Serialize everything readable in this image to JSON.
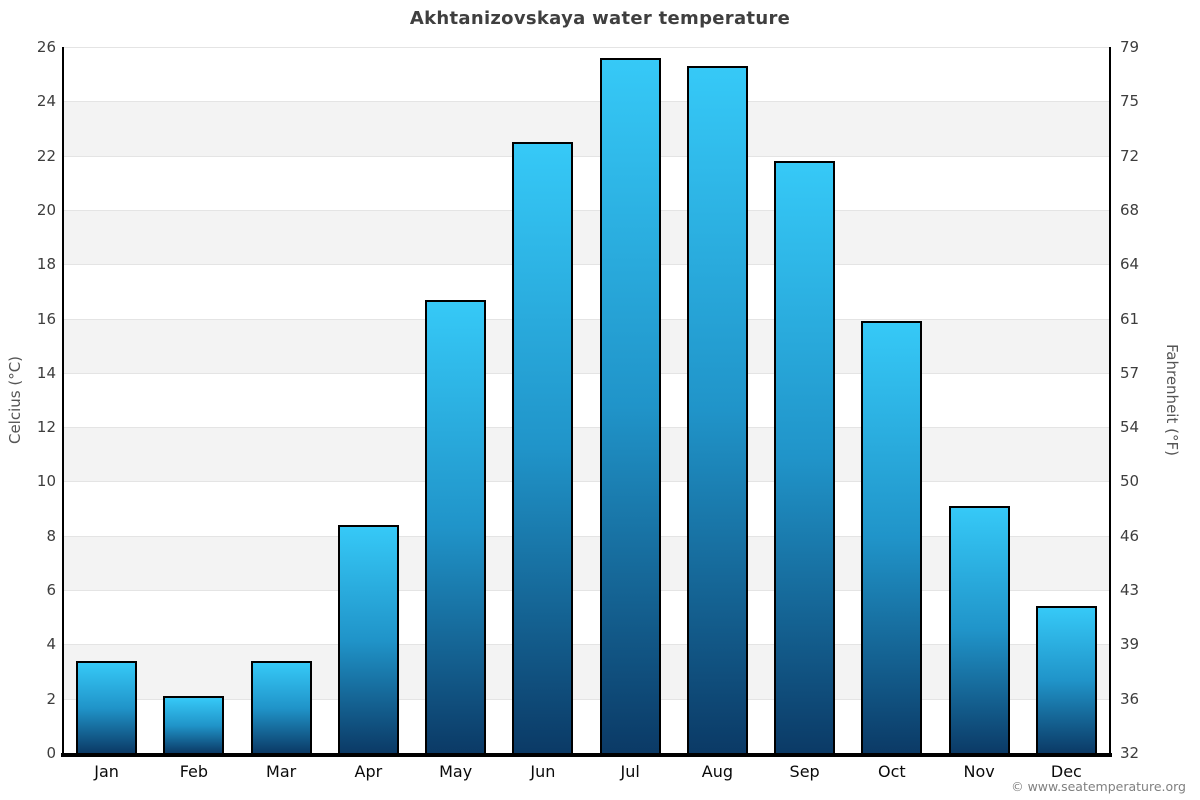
{
  "chart_data": {
    "type": "bar",
    "title": "Akhtanizovskaya water temperature",
    "categories": [
      "Jan",
      "Feb",
      "Mar",
      "Apr",
      "May",
      "Jun",
      "Jul",
      "Aug",
      "Sep",
      "Oct",
      "Nov",
      "Dec"
    ],
    "values": [
      3.4,
      2.1,
      3.4,
      8.4,
      16.7,
      22.5,
      25.6,
      25.3,
      21.8,
      15.9,
      9.1,
      5.4
    ],
    "ylabel_left": "Celcius (°C)",
    "ylabel_right": "Fahrenheit (°F)",
    "ylim": [
      0,
      26
    ],
    "ytick_step": 2,
    "yticks_celsius": [
      "0",
      "2",
      "4",
      "6",
      "8",
      "10",
      "12",
      "14",
      "16",
      "18",
      "20",
      "22",
      "24",
      "26"
    ],
    "yticks_fahrenheit": [
      "32",
      "36",
      "39",
      "43",
      "46",
      "50",
      "54",
      "57",
      "61",
      "64",
      "68",
      "72",
      "75",
      "79"
    ],
    "legend": "none",
    "grid": "alternating horizontal bands every 2°C",
    "colors": {
      "bar_gradient_top": "#36c9f7",
      "bar_gradient_mid": "#2094c9",
      "bar_gradient_bottom": "#0b3a66",
      "bar_border": "#000000",
      "band_gray": "#f3f3f3",
      "band_white": "#ffffff",
      "gridline": "#e4e4e4",
      "axis_line": "#000000",
      "title_text": "#3f3f3f",
      "tick_text": "#3d3d3d"
    }
  },
  "footer": {
    "copyright": "© www.seatemperature.org"
  }
}
